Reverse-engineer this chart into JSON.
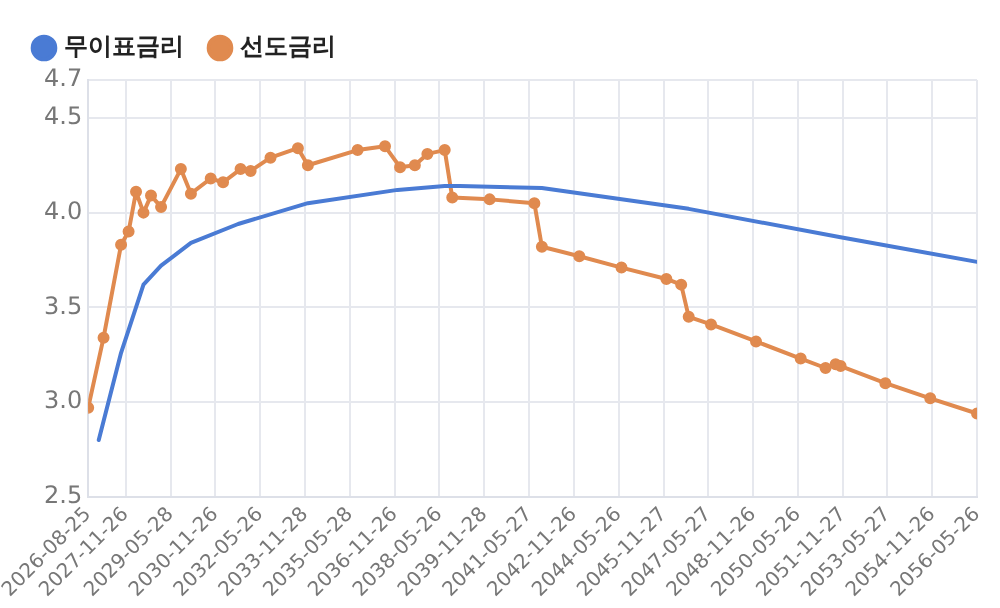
{
  "chart_data": {
    "type": "line",
    "legend": "top left",
    "grid": true,
    "xlim": [
      "2026-08-25",
      "2056-05-26"
    ],
    "xticks": [
      {
        "value": "2026-08-25",
        "label": "2026-08-25"
      },
      {
        "value": "2027-11-26",
        "label": "2027-11-26"
      },
      {
        "value": "2029-05-28",
        "label": "2029-05-28"
      },
      {
        "value": "2030-11-26",
        "label": "2030-11-26"
      },
      {
        "value": "2032-05-26",
        "label": "2032-05-26"
      },
      {
        "value": "2033-11-28",
        "label": "2033-11-28"
      },
      {
        "value": "2035-05-28",
        "label": "2035-05-28"
      },
      {
        "value": "2036-11-26",
        "label": "2036-11-26"
      },
      {
        "value": "2038-05-26",
        "label": "2038-05-26"
      },
      {
        "value": "2039-11-28",
        "label": "2039-11-28"
      },
      {
        "value": "2041-05-27",
        "label": "2041-05-27"
      },
      {
        "value": "2042-11-26",
        "label": "2042-11-26"
      },
      {
        "value": "2044-05-26",
        "label": "2044-05-26"
      },
      {
        "value": "2045-11-27",
        "label": "2045-11-27"
      },
      {
        "value": "2047-05-27",
        "label": "2047-05-27"
      },
      {
        "value": "2048-11-26",
        "label": "2048-11-26"
      },
      {
        "value": "2050-05-26",
        "label": "2050-05-26"
      },
      {
        "value": "2051-11-27",
        "label": "2051-11-27"
      },
      {
        "value": "2053-05-27",
        "label": "2053-05-27"
      },
      {
        "value": "2054-11-26",
        "label": "2054-11-26"
      },
      {
        "value": "2056-05-26",
        "label": "2056-05-26"
      }
    ],
    "ylim": [
      2.5,
      4.7
    ],
    "yticks": [
      {
        "value": 2.5,
        "label": "2.5"
      },
      {
        "value": 3,
        "label": "3.0"
      },
      {
        "value": 3.5,
        "label": "3.5"
      },
      {
        "value": 4,
        "label": "4.0"
      },
      {
        "value": 4.5,
        "label": "4.5"
      },
      {
        "value": 4.7,
        "label": "4.7"
      }
    ],
    "series": [
      {
        "name": "무이표금리",
        "color": "#4a7bd4",
        "marker": "none",
        "x": [
          "2027-01",
          "2027-10",
          "2028-07",
          "2029-02",
          "2030-02",
          "2031-09",
          "2034-01",
          "2037-01",
          "2038-08",
          "2039-02",
          "2041-11",
          "2046-10",
          "2051-11",
          "2056-05-26"
        ],
        "values": [
          2.8,
          3.26,
          3.62,
          3.72,
          3.84,
          3.94,
          4.05,
          4.12,
          4.14,
          4.14,
          4.13,
          4.02,
          3.87,
          3.74
        ]
      },
      {
        "name": "선도금리",
        "color": "#e08a4f",
        "marker": "circle",
        "x": [
          "2026-08-25",
          "2027-03",
          "2027-10",
          "2028-01",
          "2028-04",
          "2028-07",
          "2028-10",
          "2029-02",
          "2029-10",
          "2030-02",
          "2030-10",
          "2031-03",
          "2031-10",
          "2032-02",
          "2032-10",
          "2033-09",
          "2034-01",
          "2035-09",
          "2036-08",
          "2037-02",
          "2037-08",
          "2038-01",
          "2038-08",
          "2038-11",
          "2040-02",
          "2041-08",
          "2041-11",
          "2043-02",
          "2044-07",
          "2046-01",
          "2046-07",
          "2046-10",
          "2047-07",
          "2049-01",
          "2050-07",
          "2051-05",
          "2051-09",
          "2051-11",
          "2053-05",
          "2054-11",
          "2056-05-26"
        ],
        "values": [
          2.97,
          3.34,
          3.83,
          3.9,
          4.11,
          4.0,
          4.09,
          4.03,
          4.23,
          4.1,
          4.18,
          4.16,
          4.23,
          4.22,
          4.29,
          4.34,
          4.25,
          4.33,
          4.35,
          4.24,
          4.25,
          4.31,
          4.33,
          4.08,
          4.07,
          4.05,
          3.82,
          3.77,
          3.71,
          3.65,
          3.62,
          3.45,
          3.41,
          3.32,
          3.23,
          3.18,
          3.2,
          3.19,
          3.1,
          3.02,
          2.94
        ]
      }
    ]
  }
}
